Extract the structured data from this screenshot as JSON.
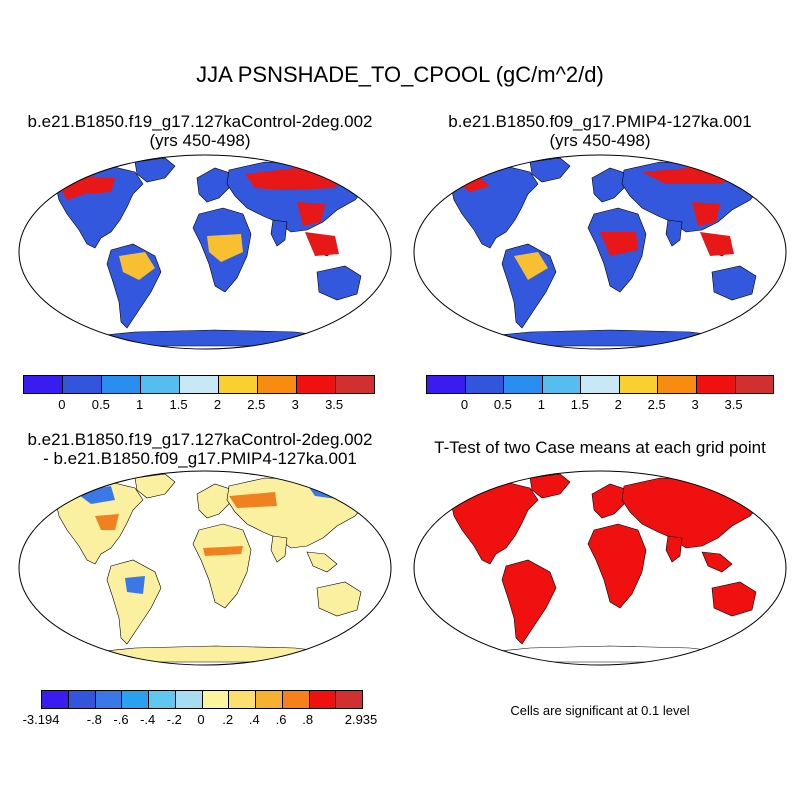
{
  "title": "JJA PSNSHADE_TO_CPOOL (gC/m^2/d)",
  "panels": {
    "p1": {
      "line1": "b.e21.B1850.f19_g17.127kaControl-2deg.002",
      "line2": "(yrs 450-498)"
    },
    "p2": {
      "line1": "b.e21.B1850.f09_g17.PMIP4-127ka.001",
      "line2": "(yrs 450-498)"
    },
    "p3": {
      "line1": "b.e21.B1850.f19_g17.127kaControl-2deg.002",
      "line2": "- b.e21.B1850.f09_g17.PMIP4-127ka.001"
    },
    "p4": {
      "line1": "T-Test of two Case means at each grid point"
    }
  },
  "colorbar_abs": {
    "colors": [
      "#3a1cf0",
      "#3355dd",
      "#2a8ef0",
      "#55bdf0",
      "#c8e8f5",
      "#f8d030",
      "#f88c10",
      "#f01010",
      "#d03030"
    ],
    "ticks": [
      "0",
      "0.5",
      "1",
      "1.5",
      "2",
      "2.5",
      "3",
      "3.5"
    ]
  },
  "colorbar_diff": {
    "colors": [
      "#3a1cf0",
      "#3355dd",
      "#3a78e8",
      "#2aa0f0",
      "#60c8f0",
      "#a8dcf0",
      "#fbf5a0",
      "#fbe070",
      "#f8b030",
      "#f88018",
      "#f01010",
      "#d03030"
    ],
    "ticks": [
      "-3.194",
      "-.8",
      "-.6",
      "-.4",
      "-.2",
      "0",
      ".2",
      ".4",
      ".6",
      ".8",
      "2.935"
    ]
  },
  "significance_note": "Cells are significant at 0.1 level",
  "map_colors": {
    "ocean": "#ffffff",
    "p1_land": "#3358dd",
    "p1_high": "#e81818",
    "p1_mid": "#f8c030",
    "p2_land": "#3358dd",
    "p2_high": "#e81818",
    "p2_mid": "#f8c030",
    "p3_land": "#fbf0a0",
    "p3_neg": "#3a78e8",
    "p3_pos": "#f08020",
    "p4_sig": "#f01010"
  }
}
